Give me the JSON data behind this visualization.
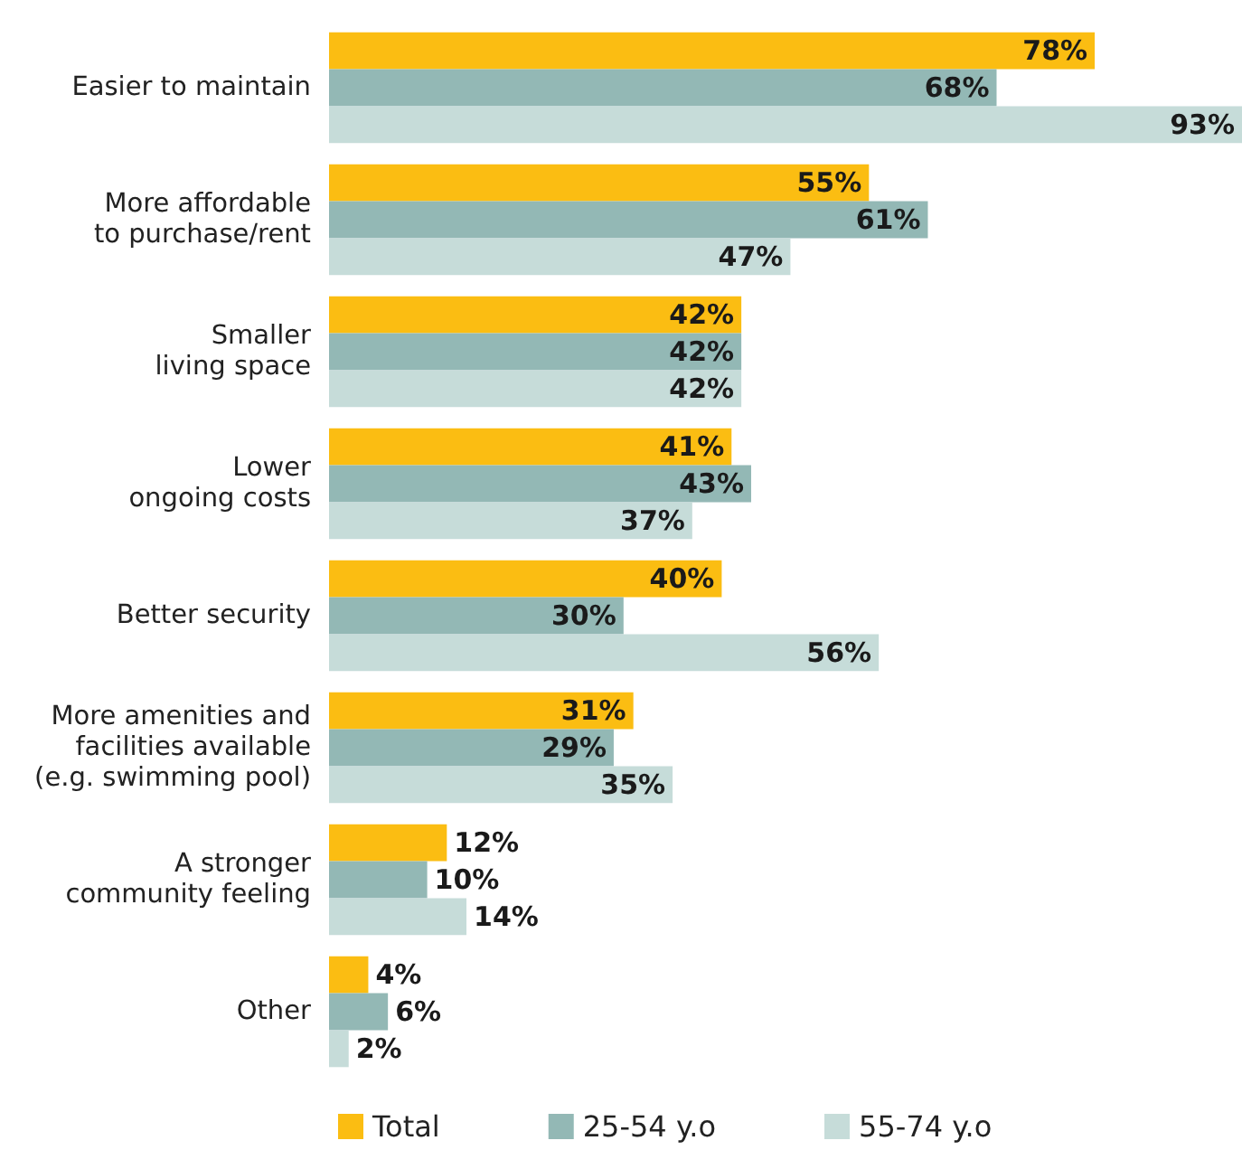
{
  "chart_data": {
    "type": "bar",
    "orientation": "horizontal",
    "categories": [
      "Easier to maintain",
      "More affordable\nto purchase/rent",
      "Smaller\nliving space",
      "Lower\nongoing costs",
      "Better security",
      "More amenities and\nfacilities available\n(e.g. swimming pool)",
      "A stronger\ncommunity feeling",
      "Other"
    ],
    "series": [
      {
        "name": "Total",
        "color": "#fbbd12",
        "values": [
          78,
          55,
          42,
          41,
          40,
          31,
          12,
          4
        ],
        "value_labels": [
          "78%",
          "55%",
          "42%",
          "41%",
          "40%",
          "31%",
          "12%",
          "4%"
        ]
      },
      {
        "name": "25-54 y.o",
        "color": "#93b8b5",
        "values": [
          68,
          61,
          42,
          43,
          30,
          29,
          10,
          6
        ],
        "value_labels": [
          "68%",
          "61%",
          "42%",
          "43%",
          "30%",
          "29%",
          "10%",
          "6%"
        ]
      },
      {
        "name": "55-74 y.o",
        "color": "#c6dcd9",
        "values": [
          93,
          47,
          42,
          37,
          56,
          35,
          14,
          2
        ],
        "value_labels": [
          "93%",
          "47%",
          "42%",
          "37%",
          "56%",
          "35%",
          "14%",
          "2%"
        ]
      }
    ],
    "legend": "bottom"
  }
}
